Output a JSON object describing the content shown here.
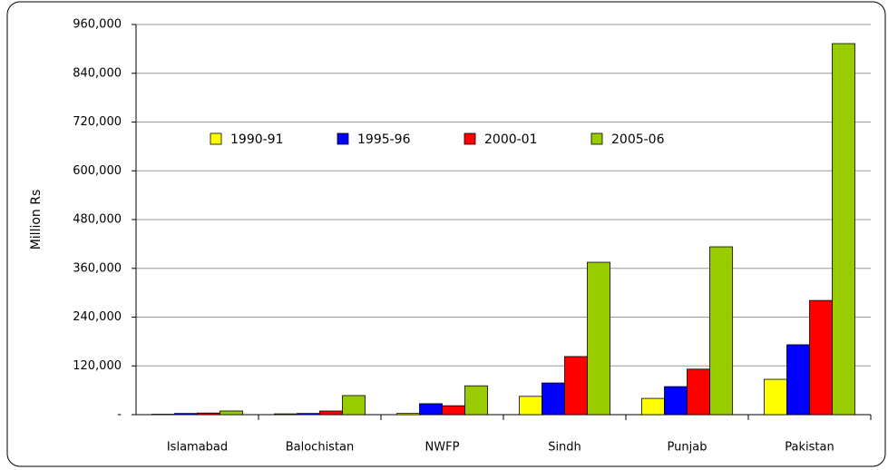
{
  "chart_data": {
    "type": "bar",
    "y_label": "Million Rs",
    "categories": [
      "Islamabad",
      "Balochistan",
      "NWFP",
      "Sindh",
      "Punjab",
      "Pakistan"
    ],
    "series": [
      {
        "name": "1990-91",
        "color": "#ffff00",
        "values": [
          1000,
          2000,
          3000,
          45000,
          40000,
          87000
        ]
      },
      {
        "name": "1995-96",
        "color": "#0000ff",
        "values": [
          3000,
          3000,
          27000,
          78000,
          69000,
          172000
        ]
      },
      {
        "name": "2000-01",
        "color": "#ff0000",
        "values": [
          4000,
          9000,
          22000,
          143000,
          112000,
          281000
        ]
      },
      {
        "name": "2005-06",
        "color": "#99cc00",
        "values": [
          9000,
          47000,
          71000,
          375000,
          413000,
          913000
        ]
      }
    ],
    "ylim": [
      0,
      960000
    ],
    "yticks": [
      {
        "value": 0,
        "label": "-"
      },
      {
        "value": 120000,
        "label": "120,000"
      },
      {
        "value": 240000,
        "label": "240,000"
      },
      {
        "value": 360000,
        "label": "360,000"
      },
      {
        "value": 480000,
        "label": "480,000"
      },
      {
        "value": 600000,
        "label": "600,000"
      },
      {
        "value": 720000,
        "label": "720,000"
      },
      {
        "value": 840000,
        "label": "840,000"
      },
      {
        "value": 960000,
        "label": "960,000"
      }
    ],
    "grid": true,
    "legend": "top"
  }
}
